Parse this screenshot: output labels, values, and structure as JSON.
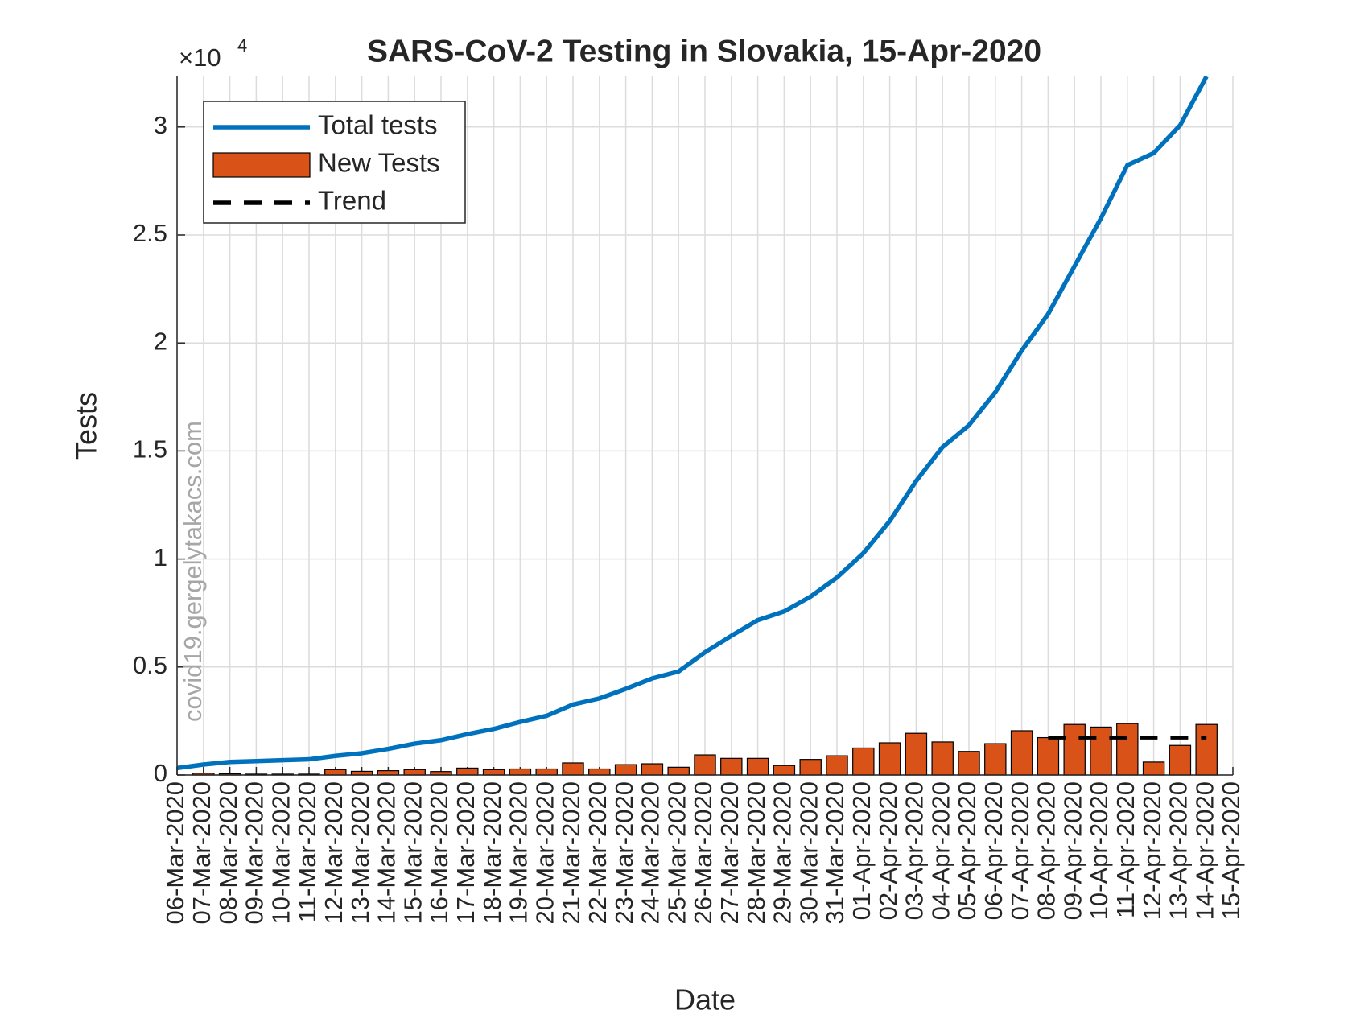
{
  "chart_data": {
    "type": "bar-line",
    "title": "SARS-CoV-2 Testing in Slovakia, 15-Apr-2020",
    "x_label": "Date",
    "y_label": "Tests",
    "y_exponent": {
      "base": "×10",
      "power": "4"
    },
    "watermark": "covid19.gergelytakacs.com",
    "categories": [
      "06-Mar-2020",
      "07-Mar-2020",
      "08-Mar-2020",
      "09-Mar-2020",
      "10-Mar-2020",
      "11-Mar-2020",
      "12-Mar-2020",
      "13-Mar-2020",
      "14-Mar-2020",
      "15-Mar-2020",
      "16-Mar-2020",
      "17-Mar-2020",
      "18-Mar-2020",
      "19-Mar-2020",
      "20-Mar-2020",
      "21-Mar-2020",
      "22-Mar-2020",
      "23-Mar-2020",
      "24-Mar-2020",
      "25-Mar-2020",
      "26-Mar-2020",
      "27-Mar-2020",
      "28-Mar-2020",
      "29-Mar-2020",
      "30-Mar-2020",
      "31-Mar-2020",
      "01-Apr-2020",
      "02-Apr-2020",
      "03-Apr-2020",
      "04-Apr-2020",
      "05-Apr-2020",
      "06-Apr-2020",
      "07-Apr-2020",
      "08-Apr-2020",
      "09-Apr-2020",
      "10-Apr-2020",
      "11-Apr-2020",
      "12-Apr-2020",
      "13-Apr-2020",
      "14-Apr-2020",
      "15-Apr-2020"
    ],
    "series": [
      {
        "name": "Total tests",
        "kind": "line",
        "color": "#0072BD",
        "values": [
          322,
          483,
          604,
          644,
          685,
          725,
          886,
          1007,
          1208,
          1450,
          1611,
          1893,
          2134,
          2457,
          2739,
          3262,
          3544,
          3987,
          4470,
          4793,
          5679,
          6444,
          7169,
          7571,
          8256,
          9142,
          10270,
          11760,
          13610,
          15180,
          16190,
          17720,
          19650,
          21340,
          23560,
          25770,
          28230,
          28790,
          30080,
          32340,
          null
        ]
      },
      {
        "name": "New Tests",
        "kind": "bar",
        "color": "#D95319",
        "values": [
          0,
          80,
          60,
          40,
          40,
          40,
          250,
          170,
          200,
          250,
          160,
          320,
          250,
          280,
          280,
          560,
          280,
          480,
          520,
          360,
          930,
          770,
          770,
          440,
          720,
          890,
          1250,
          1490,
          1930,
          1530,
          1090,
          1450,
          2050,
          1730,
          2340,
          2220,
          2380,
          600,
          1370,
          2340,
          null
        ]
      },
      {
        "name": "Trend",
        "kind": "dashed",
        "color": "#000000",
        "values": [
          null,
          null,
          null,
          null,
          null,
          null,
          null,
          null,
          null,
          null,
          null,
          null,
          null,
          null,
          null,
          null,
          null,
          null,
          null,
          null,
          null,
          null,
          null,
          null,
          null,
          null,
          null,
          null,
          null,
          null,
          null,
          null,
          null,
          1730,
          1730,
          1730,
          1730,
          1730,
          1730,
          1730,
          null
        ]
      }
    ],
    "ylim": [
      0,
      32340
    ],
    "yticks": [
      0,
      {
        "value": 5000,
        "label": "0.5"
      },
      {
        "value": 10000,
        "label": "1"
      },
      {
        "value": 15000,
        "label": "1.5"
      },
      {
        "value": 20000,
        "label": "2"
      },
      {
        "value": 25000,
        "label": "2.5"
      },
      {
        "value": 30000,
        "label": "3"
      }
    ],
    "grid": true,
    "legend": "upper left"
  }
}
